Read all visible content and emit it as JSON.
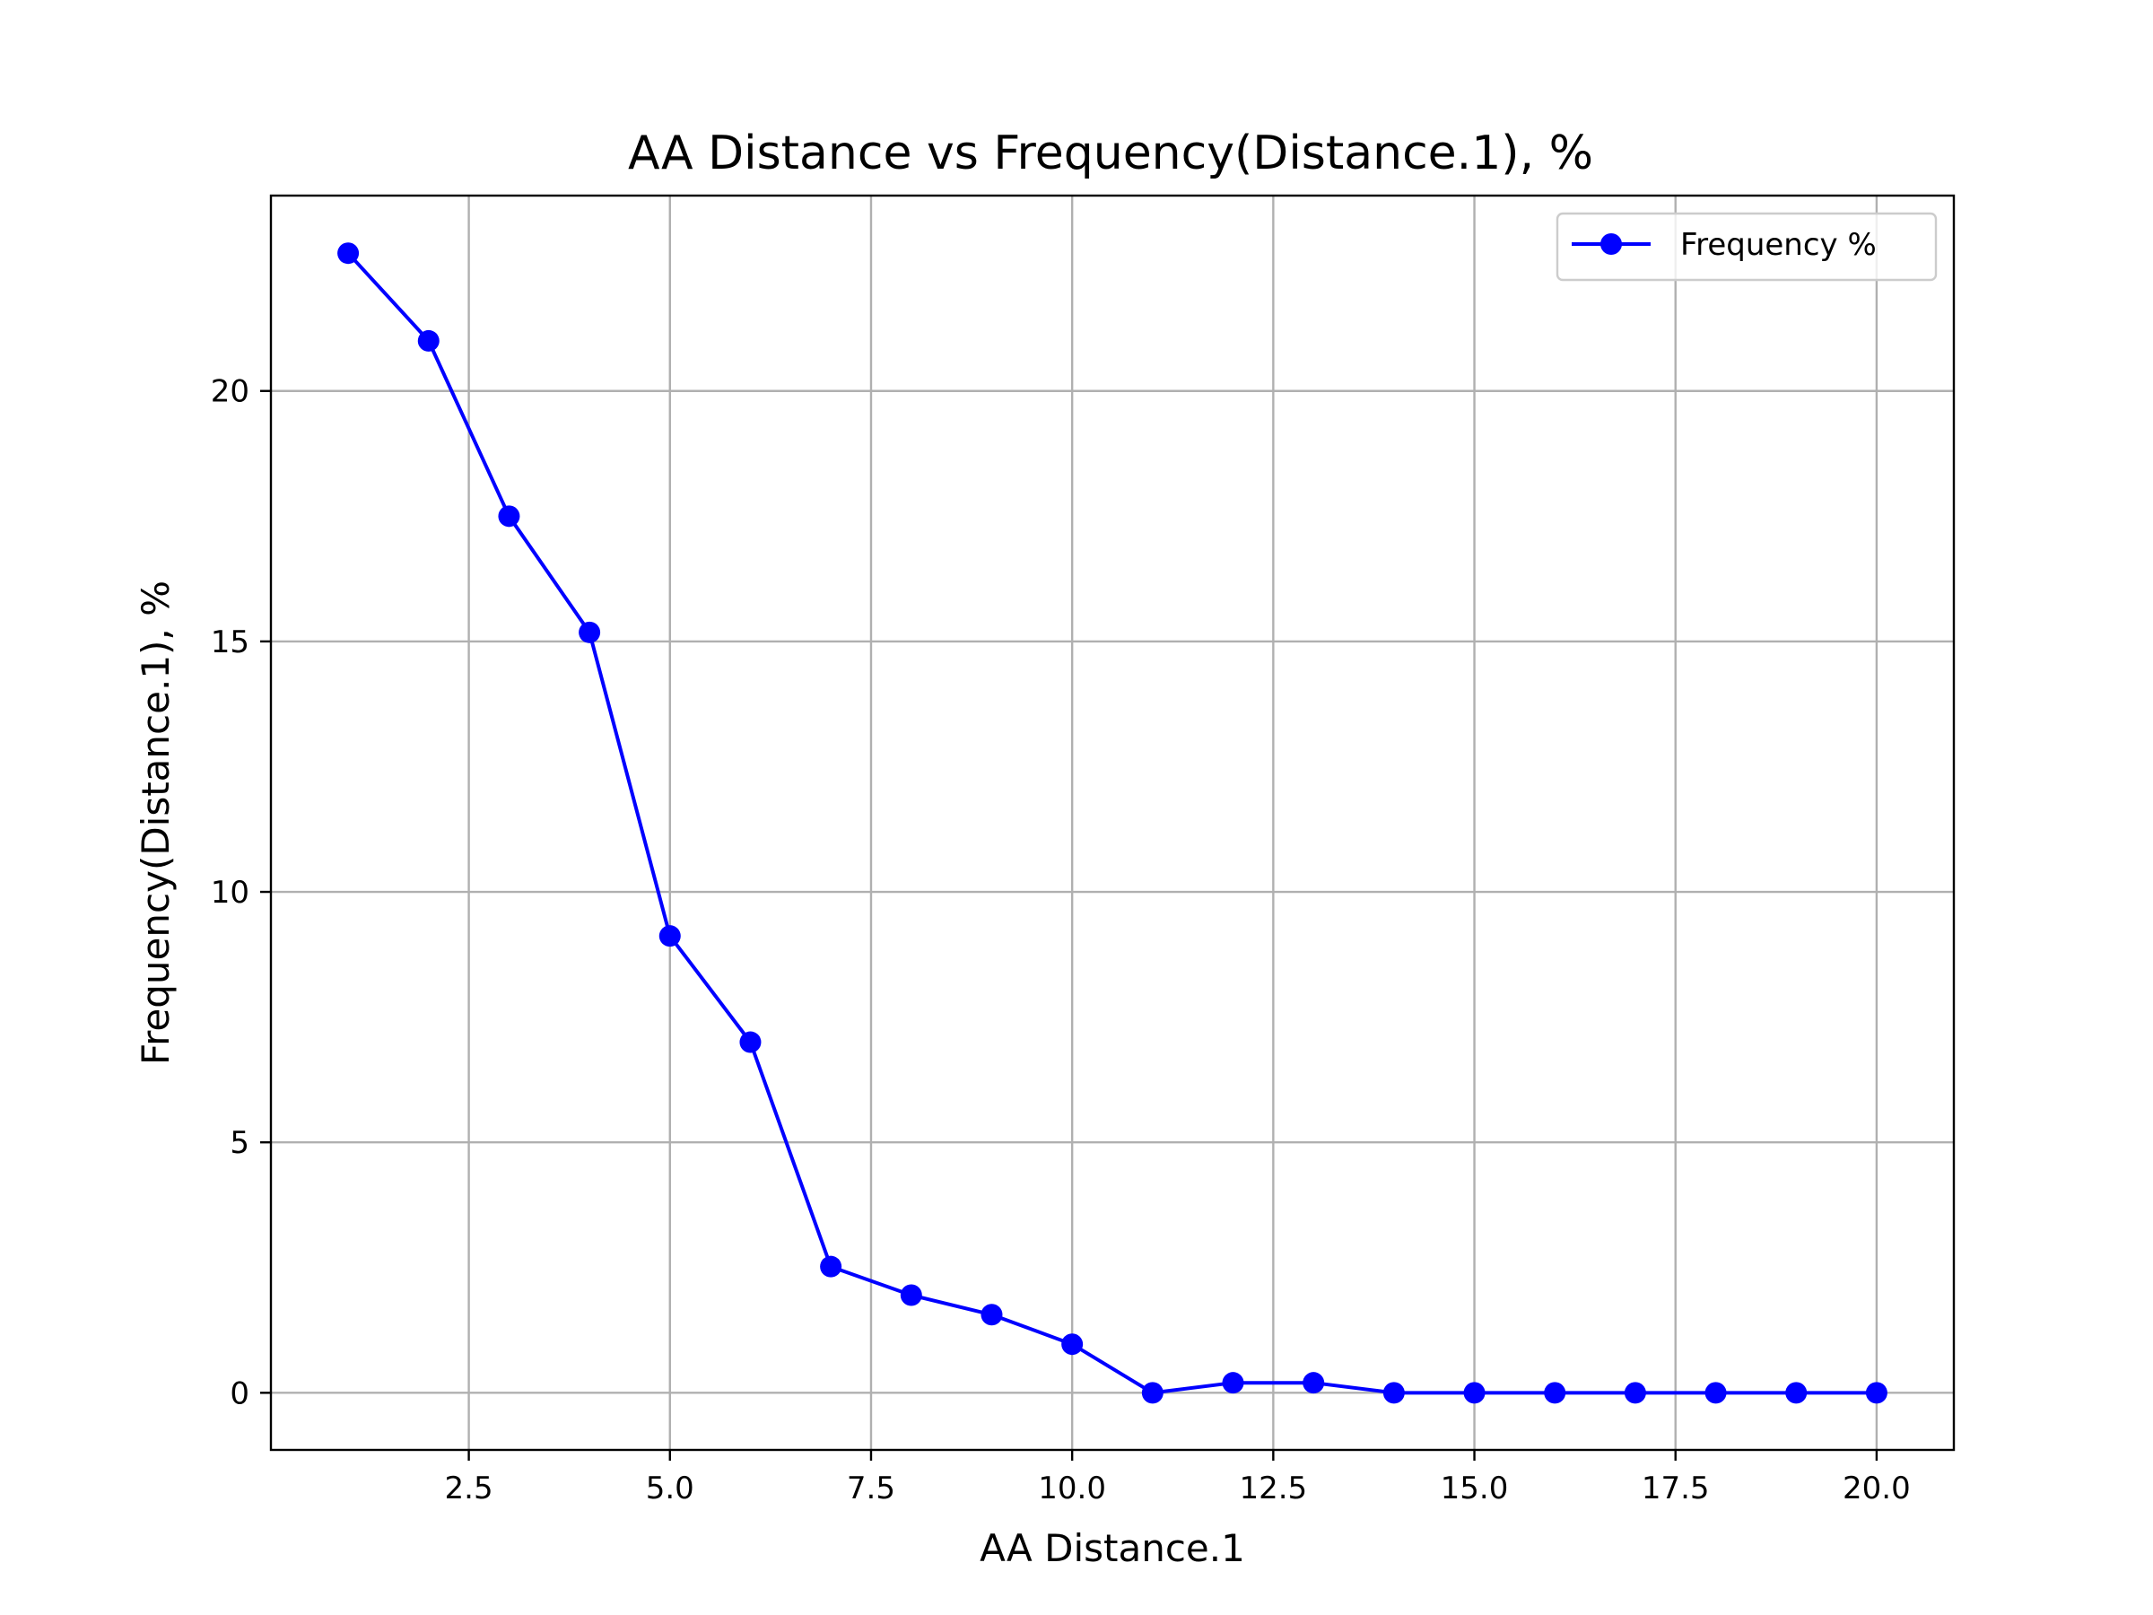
{
  "chart_data": {
    "type": "line",
    "title": "AA Distance vs Frequency(Distance.1), %",
    "xlabel": "AA Distance.1",
    "ylabel": "Frequency(Distance.1), %",
    "xlim": [
      0.04,
      20.96
    ],
    "ylim": [
      -1.14,
      23.9
    ],
    "xticks": [
      2.5,
      5.0,
      7.5,
      10.0,
      12.5,
      15.0,
      17.5,
      20.0
    ],
    "xtick_labels": [
      "2.5",
      "5.0",
      "7.5",
      "10.0",
      "12.5",
      "15.0",
      "17.5",
      "20.0"
    ],
    "yticks": [
      0,
      5,
      10,
      15,
      20
    ],
    "ytick_labels": [
      "0",
      "5",
      "10",
      "15",
      "20"
    ],
    "grid": true,
    "legend_position": "top-right",
    "series": [
      {
        "name": "Frequency %",
        "color": "#0000ff",
        "marker": "circle",
        "x": [
          1,
          2,
          3,
          4,
          5,
          6,
          7,
          8,
          9,
          10,
          11,
          12,
          13,
          14,
          15,
          16,
          17,
          18,
          19,
          20
        ],
        "y": [
          22.75,
          21.0,
          17.5,
          15.18,
          9.12,
          7.0,
          2.52,
          1.95,
          1.56,
          0.97,
          0.0,
          0.2,
          0.2,
          0.0,
          0.0,
          0.0,
          0.0,
          0.0,
          0.0,
          0.0
        ]
      }
    ]
  }
}
